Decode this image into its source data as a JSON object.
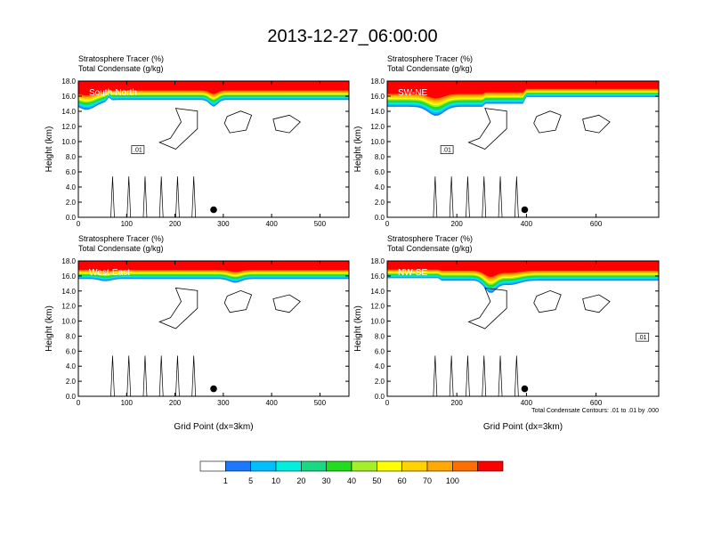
{
  "title": "2013-12-27_06:00:00",
  "colors": {
    "scale": [
      "#ffffff",
      "#1e78ff",
      "#00bfff",
      "#00f0e0",
      "#19d983",
      "#22dd1e",
      "#a2ef2a",
      "#ffff00",
      "#ffd200",
      "#ffaa00",
      "#ff6e00",
      "#ff0000"
    ],
    "contour": "#000000"
  },
  "colorbar": {
    "labels": [
      "1",
      "5",
      "10",
      "20",
      "30",
      "40",
      "50",
      "60",
      "70",
      "100"
    ]
  },
  "note": "Total Condensate Contours: .01 to .01 by .000",
  "chart_data": [
    {
      "type": "heatmap",
      "panel_label": "South-North",
      "subtitle_top": "Stratosphere Tracer   (%)",
      "subtitle_bottom": "Total Condensate   (g/kg)",
      "ylabel": "Height (km)",
      "xlabel": "",
      "xlim": [
        0,
        560
      ],
      "ylim": [
        0,
        18
      ],
      "xticks": [
        "0",
        "100",
        "200",
        "300",
        "400",
        "500"
      ],
      "yticks": [
        "0.0",
        "2.0",
        "4.0",
        "6.0",
        "8.0",
        "10.0",
        "12.0",
        "14.0",
        "16.0",
        "18.0"
      ],
      "contour_label": ".01",
      "marker": {
        "x": 280,
        "y": 1.0
      }
    },
    {
      "type": "heatmap",
      "panel_label": "SW-NE",
      "subtitle_top": "Stratosphere Tracer   (%)",
      "subtitle_bottom": "Total Condensate   (g/kg)",
      "ylabel": "Height (km)",
      "xlabel": "",
      "xlim": [
        0,
        780
      ],
      "ylim": [
        0,
        18
      ],
      "xticks": [
        "0",
        "200",
        "400",
        "600"
      ],
      "yticks": [
        "0.0",
        "2.0",
        "4.0",
        "6.0",
        "8.0",
        "10.0",
        "12.0",
        "14.0",
        "16.0",
        "18.0"
      ],
      "contour_label": ".01",
      "marker": {
        "x": 395,
        "y": 1.0
      }
    },
    {
      "type": "heatmap",
      "panel_label": "West-East",
      "subtitle_top": "Stratosphere Tracer   (%)",
      "subtitle_bottom": "Total Condensate   (g/kg)",
      "ylabel": "Height (km)",
      "xlabel": "Grid Point (dx=3km)",
      "xlim": [
        0,
        560
      ],
      "ylim": [
        0,
        18
      ],
      "xticks": [
        "0",
        "100",
        "200",
        "300",
        "400",
        "500"
      ],
      "yticks": [
        "0.0",
        "2.0",
        "4.0",
        "6.0",
        "8.0",
        "10.0",
        "12.0",
        "14.0",
        "16.0",
        "18.0"
      ],
      "contour_label": "",
      "marker": {
        "x": 280,
        "y": 1.0
      }
    },
    {
      "type": "heatmap",
      "panel_label": "NW-SE",
      "subtitle_top": "Stratosphere Tracer   (%)",
      "subtitle_bottom": "Total Condensate   (g/kg)",
      "ylabel": "Height (km)",
      "xlabel": "Grid Point (dx=3km)",
      "xlim": [
        0,
        780
      ],
      "ylim": [
        0,
        18
      ],
      "xticks": [
        "0",
        "200",
        "400",
        "600"
      ],
      "yticks": [
        "0.0",
        "2.0",
        "4.0",
        "6.0",
        "8.0",
        "10.0",
        "12.0",
        "14.0",
        "16.0",
        "18.0"
      ],
      "contour_label": ".01",
      "marker": {
        "x": 395,
        "y": 1.0
      }
    }
  ]
}
